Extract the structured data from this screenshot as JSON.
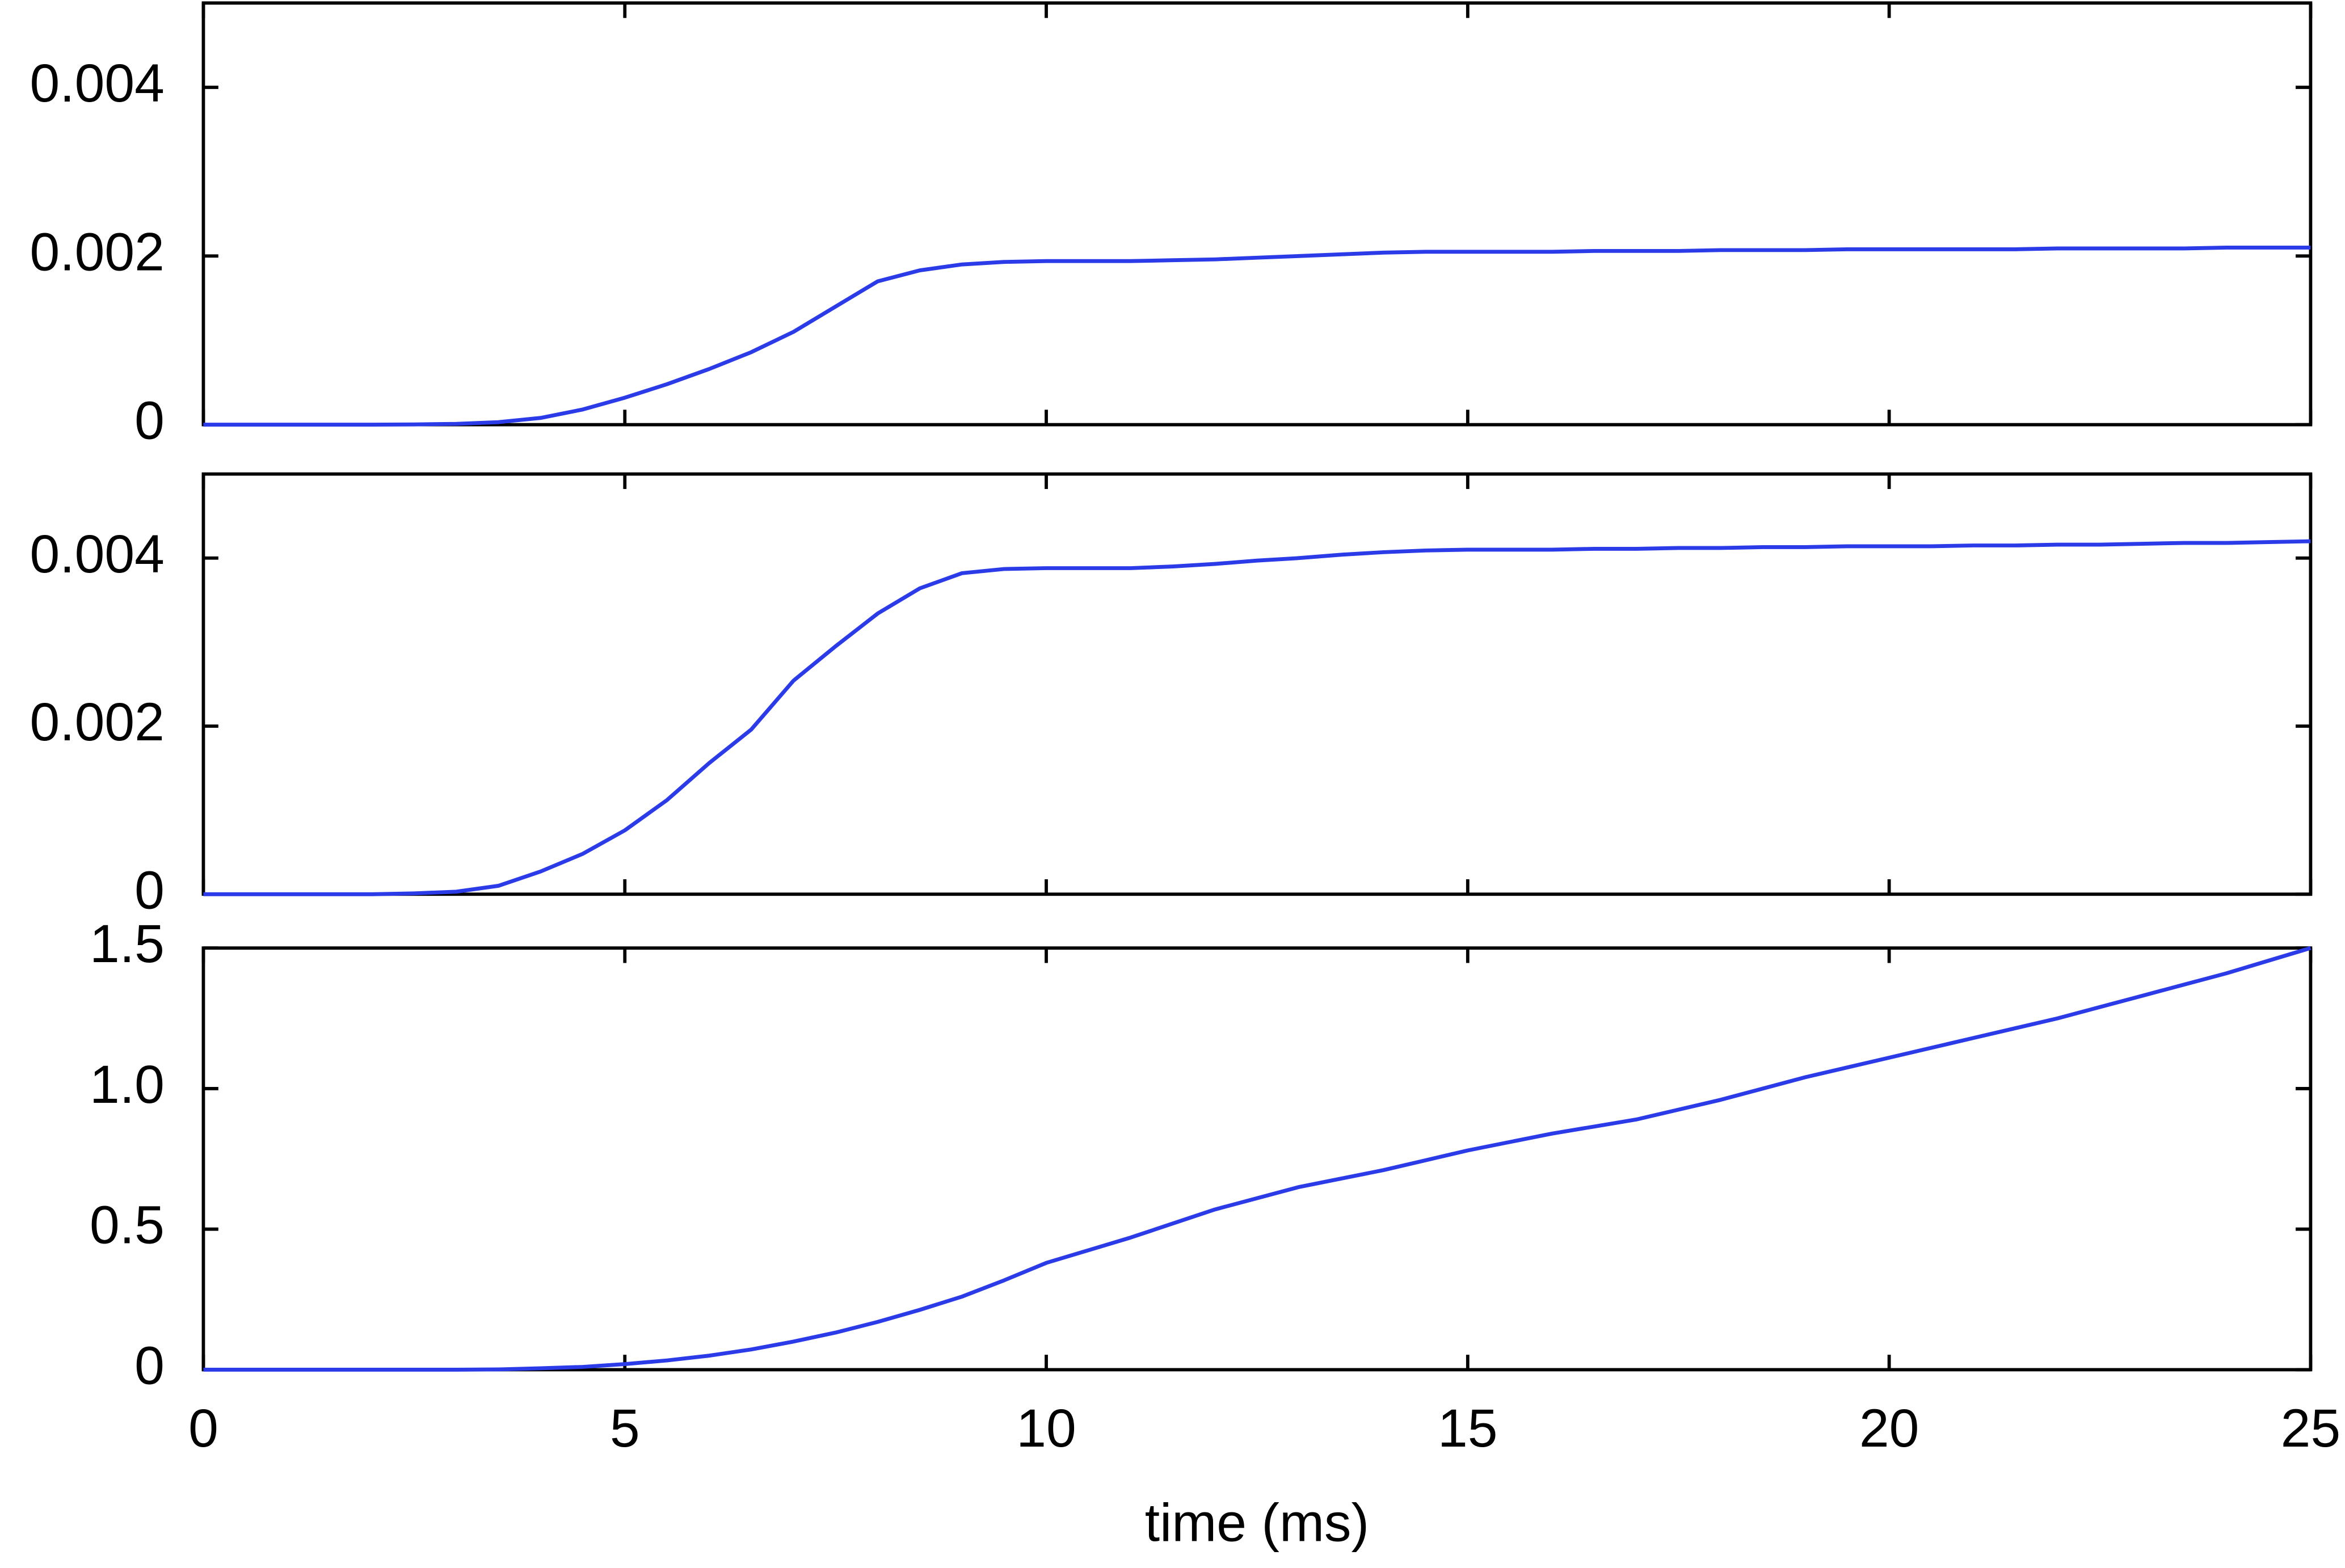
{
  "chart_data": [
    {
      "type": "line",
      "color": "#2b3be8",
      "x": [
        0,
        0.5,
        1,
        1.5,
        2,
        2.5,
        3,
        3.5,
        4,
        4.5,
        5,
        5.5,
        6,
        6.5,
        7,
        7.5,
        8,
        8.5,
        9,
        9.5,
        10,
        10.5,
        11,
        11.5,
        12,
        12.5,
        13,
        13.5,
        14,
        14.5,
        15,
        15.5,
        16,
        16.5,
        17,
        17.5,
        18,
        18.5,
        19,
        19.5,
        20,
        20.5,
        21,
        21.5,
        22,
        22.5,
        23,
        23.5,
        24,
        24.5,
        25
      ],
      "values": [
        0,
        0,
        0,
        0,
        0,
        3e-06,
        1e-05,
        3e-05,
        8e-05,
        0.00018,
        0.00032,
        0.00048,
        0.00066,
        0.00086,
        0.0011,
        0.0014,
        0.0017,
        0.00183,
        0.0019,
        0.00193,
        0.00194,
        0.00194,
        0.00194,
        0.00195,
        0.00196,
        0.00198,
        0.002,
        0.00202,
        0.00204,
        0.00205,
        0.00205,
        0.00205,
        0.00205,
        0.00206,
        0.00206,
        0.00206,
        0.00207,
        0.00207,
        0.00207,
        0.00208,
        0.00208,
        0.00208,
        0.00208,
        0.00208,
        0.00209,
        0.00209,
        0.00209,
        0.00209,
        0.0021,
        0.0021,
        0.0021
      ],
      "xlim": [
        0,
        25
      ],
      "xticks": [
        0,
        5,
        10,
        15,
        20,
        25
      ],
      "ylim": [
        0,
        0.005
      ],
      "yticks": [
        0,
        0.002,
        0.004
      ]
    },
    {
      "type": "line",
      "color": "#2b3be8",
      "x": [
        0,
        0.5,
        1,
        1.5,
        2,
        2.5,
        3,
        3.5,
        4,
        4.5,
        5,
        5.5,
        6,
        6.5,
        7,
        7.5,
        8,
        8.5,
        9,
        9.5,
        10,
        10.5,
        11,
        11.5,
        12,
        12.5,
        13,
        13.5,
        14,
        14.5,
        15,
        15.5,
        16,
        16.5,
        17,
        17.5,
        18,
        18.5,
        19,
        19.5,
        20,
        20.5,
        21,
        21.5,
        22,
        22.5,
        23,
        23.5,
        24,
        24.5,
        25
      ],
      "values": [
        0,
        0,
        0,
        0,
        0,
        1e-05,
        3e-05,
        0.0001,
        0.00027,
        0.00048,
        0.00076,
        0.00112,
        0.00156,
        0.00196,
        0.00254,
        0.00295,
        0.00334,
        0.00364,
        0.00382,
        0.00387,
        0.00388,
        0.00388,
        0.00388,
        0.0039,
        0.00393,
        0.00397,
        0.004,
        0.00404,
        0.00407,
        0.00409,
        0.0041,
        0.0041,
        0.0041,
        0.00411,
        0.00411,
        0.00412,
        0.00412,
        0.00413,
        0.00413,
        0.00414,
        0.00414,
        0.00414,
        0.00415,
        0.00415,
        0.00416,
        0.00416,
        0.00417,
        0.00418,
        0.00418,
        0.00419,
        0.0042
      ],
      "xlim": [
        0,
        25
      ],
      "xticks": [
        0,
        5,
        10,
        15,
        20,
        25
      ],
      "ylim": [
        0,
        0.005
      ],
      "yticks": [
        0,
        0.002,
        0.004
      ]
    },
    {
      "type": "line",
      "color": "#2b3be8",
      "x_label": "time (ms)",
      "x": [
        0,
        0.5,
        1,
        1.5,
        2,
        2.5,
        3,
        3.5,
        4,
        4.5,
        5,
        5.5,
        6,
        6.5,
        7,
        7.5,
        8,
        8.5,
        9,
        9.5,
        10,
        10.5,
        11,
        11.5,
        12,
        12.5,
        13,
        13.5,
        14,
        14.5,
        15,
        15.5,
        16,
        16.5,
        17,
        17.5,
        18,
        18.5,
        19,
        19.5,
        20,
        20.5,
        21,
        21.5,
        22,
        22.5,
        23,
        23.5,
        24,
        24.5,
        25
      ],
      "values": [
        0,
        0,
        0,
        0,
        0,
        0,
        0,
        0.001,
        0.005,
        0.01,
        0.02,
        0.033,
        0.05,
        0.072,
        0.1,
        0.132,
        0.17,
        0.213,
        0.26,
        0.318,
        0.38,
        0.425,
        0.47,
        0.52,
        0.57,
        0.61,
        0.65,
        0.68,
        0.71,
        0.745,
        0.78,
        0.81,
        0.84,
        0.865,
        0.89,
        0.925,
        0.96,
        1.0,
        1.04,
        1.075,
        1.11,
        1.145,
        1.18,
        1.215,
        1.25,
        1.29,
        1.33,
        1.37,
        1.41,
        1.455,
        1.5
      ],
      "xlim": [
        0,
        25
      ],
      "xticks": [
        0,
        5,
        10,
        15,
        20,
        25
      ],
      "ylim": [
        0,
        1.5
      ],
      "yticks": [
        0,
        0.5,
        {
          "value": 1,
          "label": "1.0"
        },
        1.5
      ]
    }
  ]
}
